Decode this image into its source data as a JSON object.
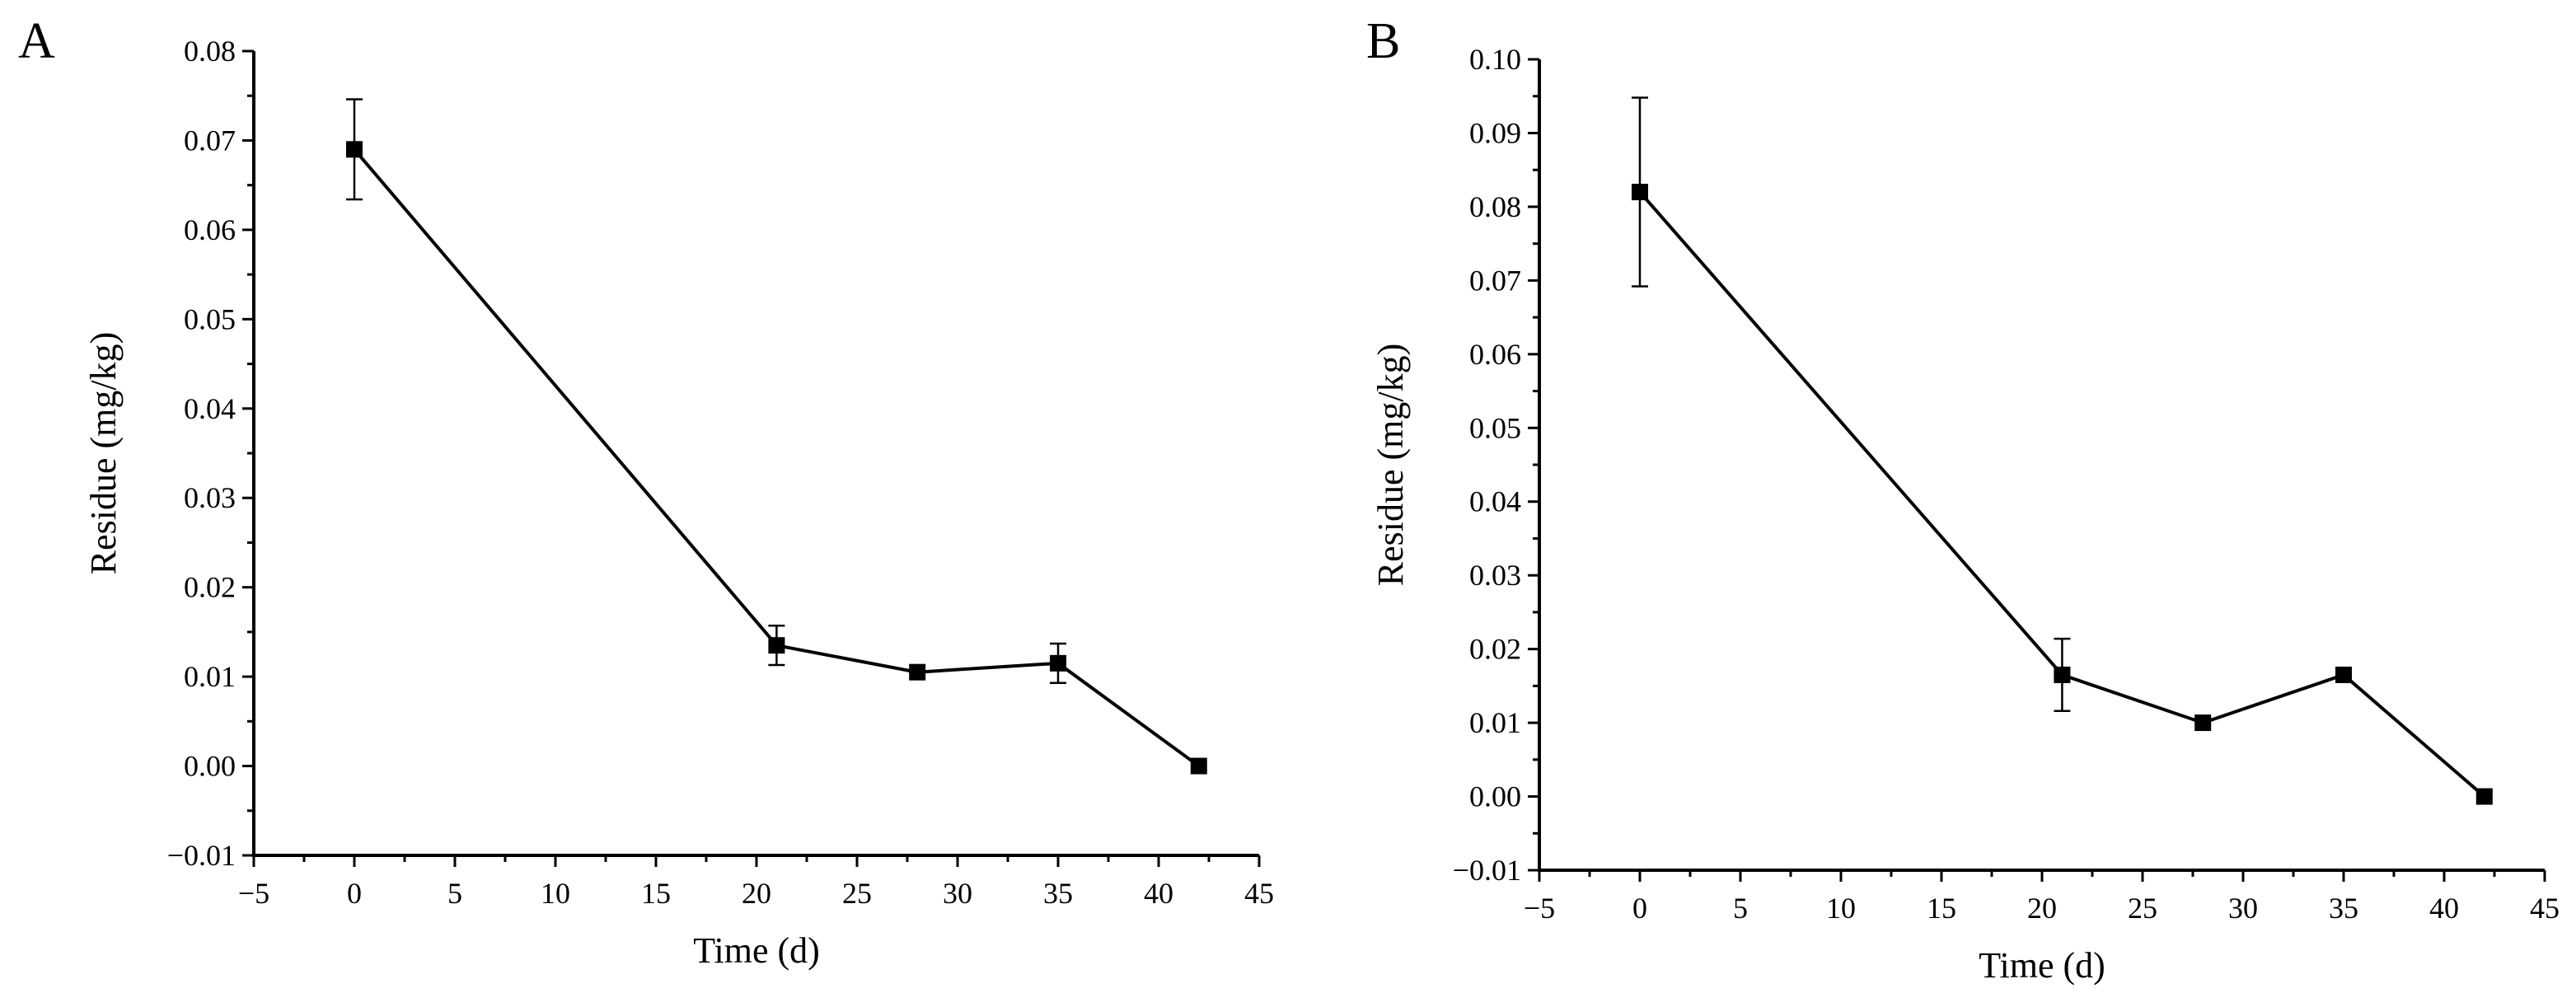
{
  "chart_data": [
    {
      "type": "line",
      "panel": "A",
      "title": "",
      "xlabel": "Time (d)",
      "ylabel": "Residue (mg/kg)",
      "xlim": [
        -5,
        45
      ],
      "ylim": [
        -0.01,
        0.08
      ],
      "xticks": [
        -5,
        0,
        5,
        10,
        15,
        20,
        25,
        30,
        35,
        40,
        45
      ],
      "xtick_labels": [
        "−5",
        "0",
        "5",
        "10",
        "15",
        "20",
        "25",
        "30",
        "35",
        "40",
        "45"
      ],
      "yticks": [
        -0.01,
        0.0,
        0.01,
        0.02,
        0.03,
        0.04,
        0.05,
        0.06,
        0.07,
        0.08
      ],
      "ytick_labels": [
        "−0.01",
        "0.00",
        "0.01",
        "0.02",
        "0.03",
        "0.04",
        "0.05",
        "0.06",
        "0.07",
        "0.08"
      ],
      "series": [
        {
          "name": "Residue",
          "x": [
            0,
            21,
            28,
            35,
            42
          ],
          "y": [
            0.069,
            0.0135,
            0.0105,
            0.0115,
            0.0
          ],
          "err": [
            0.0056,
            0.0022,
            0,
            0.0022,
            0
          ]
        }
      ]
    },
    {
      "type": "line",
      "panel": "B",
      "title": "",
      "xlabel": "Time (d)",
      "ylabel": "Residue (mg/kg)",
      "xlim": [
        -5,
        45
      ],
      "ylim": [
        -0.01,
        0.1
      ],
      "xticks": [
        -5,
        0,
        5,
        10,
        15,
        20,
        25,
        30,
        35,
        40,
        45
      ],
      "xtick_labels": [
        "−5",
        "0",
        "5",
        "10",
        "15",
        "20",
        "25",
        "30",
        "35",
        "40",
        "45"
      ],
      "yticks": [
        -0.01,
        0.0,
        0.01,
        0.02,
        0.03,
        0.04,
        0.05,
        0.06,
        0.07,
        0.08,
        0.09,
        0.1
      ],
      "ytick_labels": [
        "−0.01",
        "0.00",
        "0.01",
        "0.02",
        "0.03",
        "0.04",
        "0.05",
        "0.06",
        "0.07",
        "0.08",
        "0.09",
        "0.10"
      ],
      "series": [
        {
          "name": "Residue",
          "x": [
            0,
            21,
            28,
            35,
            42
          ],
          "y": [
            0.082,
            0.0165,
            0.01,
            0.0165,
            0.0
          ],
          "err": [
            0.0128,
            0.0049,
            0,
            0,
            0
          ]
        }
      ]
    }
  ]
}
